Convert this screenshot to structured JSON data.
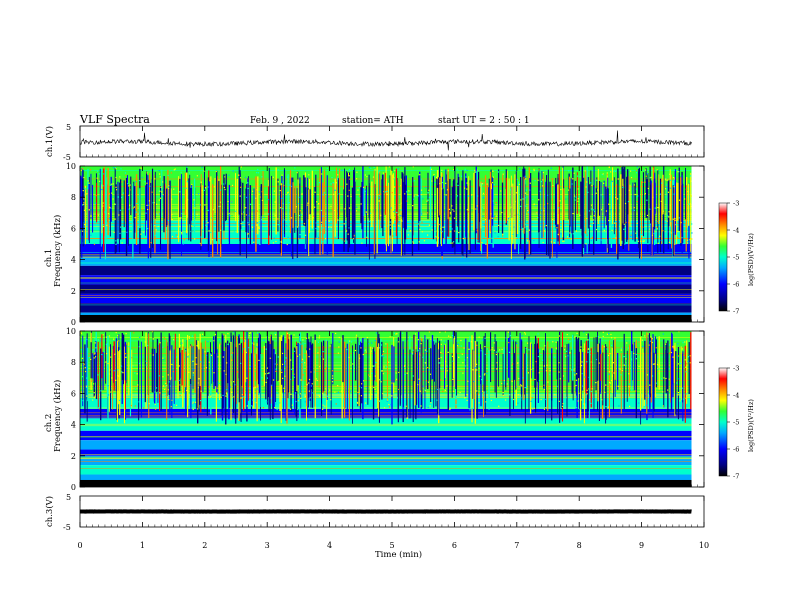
{
  "header": {
    "title": "VLF  Spectra",
    "date": "Feb. 9  , 2022",
    "station": "station= ATH",
    "start": "start  UT  =   2  : 50 : 1"
  },
  "chart_data": [
    {
      "type": "line",
      "name": "ch1-waveform",
      "ylabel": "ch.1(V)",
      "ylim": [
        -5,
        5
      ],
      "y_ticks": [
        "5",
        "-5"
      ],
      "xlim": [
        0,
        10
      ],
      "data_end_min": 9.8,
      "baseline_v": -0.4
    },
    {
      "type": "heatmap",
      "name": "ch1-spectrogram",
      "ylabel": "ch.1  Frequency  (kHz)",
      "ylabel_channel": "ch.1",
      "ylabel_freq": "Frequency  (kHz)",
      "ylim": [
        0,
        10
      ],
      "y_ticks": [
        "0",
        "2",
        "4",
        "6",
        "8",
        "10"
      ],
      "xlim": [
        0,
        10
      ],
      "colorbar": {
        "label": "log(PSD)(V²/Hz)",
        "range": [
          -7,
          -3
        ],
        "ticks": [
          "-3",
          "-4",
          "-5",
          "-6",
          "-7"
        ],
        "colormap": [
          "#000080",
          "#0000ff",
          "#00aaff",
          "#00ffcc",
          "#33ff33",
          "#ffff00",
          "#ff8800",
          "#ff0000",
          "#ffffff"
        ]
      }
    },
    {
      "type": "heatmap",
      "name": "ch2-spectrogram",
      "ylabel": "ch.2  Frequency  (kHz)",
      "ylabel_channel": "ch.2",
      "ylabel_freq": "Frequency  (kHz)",
      "ylim": [
        0,
        10
      ],
      "y_ticks": [
        "0",
        "2",
        "4",
        "6",
        "8",
        "10"
      ],
      "xlim": [
        0,
        10
      ],
      "colorbar": {
        "label": "log(PSD)(V²/Hz)",
        "range": [
          -7,
          -3
        ],
        "ticks": [
          "-3",
          "-4",
          "-5",
          "-6",
          "-7"
        ],
        "colormap": [
          "#000080",
          "#0000ff",
          "#00aaff",
          "#00ffcc",
          "#33ff33",
          "#ffff00",
          "#ff8800",
          "#ff0000",
          "#ffffff"
        ]
      }
    },
    {
      "type": "line",
      "name": "ch3-waveform",
      "ylabel": "ch.3(V)",
      "ylim": [
        -5,
        5
      ],
      "y_ticks": [
        "5",
        "-5"
      ],
      "xlim": [
        0,
        10
      ],
      "data_end_min": 9.8,
      "baseline_v": 0
    }
  ],
  "x_axis": {
    "label": "Time  (min)",
    "ticks": [
      "0",
      "1",
      "2",
      "3",
      "4",
      "5",
      "6",
      "7",
      "8",
      "9",
      "10"
    ]
  }
}
